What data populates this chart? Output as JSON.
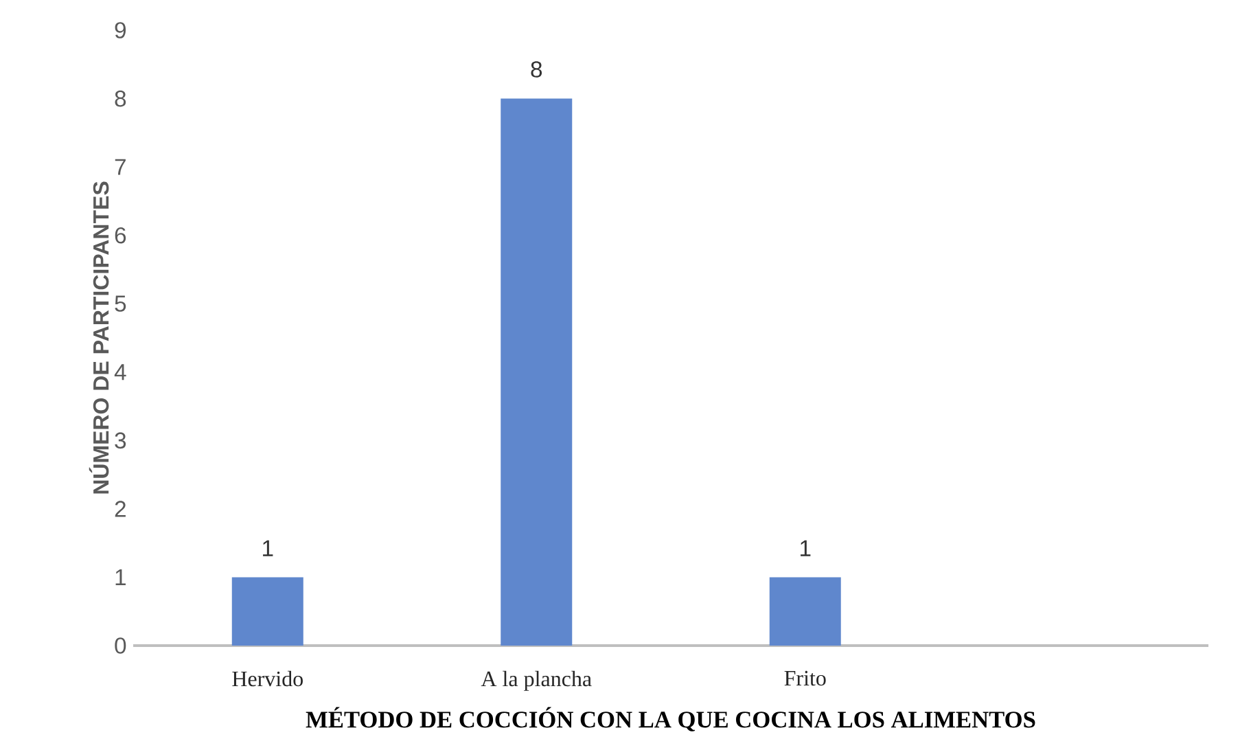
{
  "chart_data": {
    "type": "bar",
    "categories": [
      "Hervido",
      "A la plancha",
      "Frito",
      null
    ],
    "values": [
      1,
      8,
      1,
      null
    ],
    "color": "#5f87cd",
    "xlabel": "MÉTODO DE COCCIÓN CON LA QUE COCINA LOS ALIMENTOS",
    "ylabel": "NÚMERO DE PARTICIPANTES",
    "ylim": [
      0,
      9
    ],
    "yticks": [
      0,
      1,
      2,
      3,
      4,
      5,
      6,
      7,
      8,
      9
    ],
    "data_labels": true
  }
}
